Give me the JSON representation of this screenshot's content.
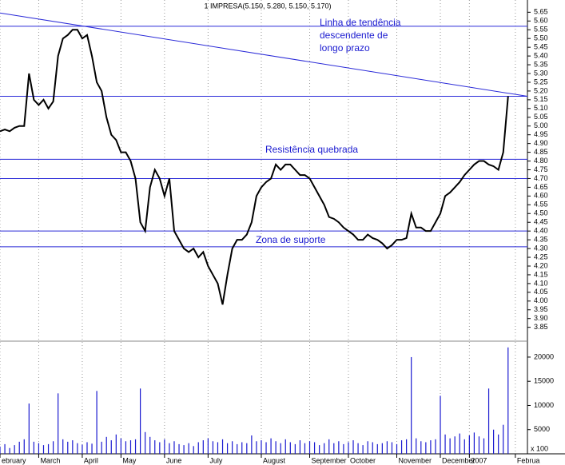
{
  "chart_data": [
    {
      "type": "line",
      "title": "1 IMPRESA(5.150, 5.280, 5.150, 5.170)",
      "color": "#000000",
      "line_color": "#2a2ad8",
      "annotations": [
        "Linha de tendência",
        "descendente de",
        "longo prazo",
        "Resistência quebrada",
        "Zona de suporte"
      ],
      "xlim": [
        0,
        109
      ],
      "xticks": [
        {
          "value": 0,
          "label": "ebruary"
        },
        {
          "value": 8,
          "label": "March"
        },
        {
          "value": 17,
          "label": "April"
        },
        {
          "value": 25,
          "label": "May"
        },
        {
          "value": 34,
          "label": "June"
        },
        {
          "value": 43,
          "label": "July"
        },
        {
          "value": 54,
          "label": "August"
        },
        {
          "value": 64,
          "label": "September"
        },
        {
          "value": 72,
          "label": "October"
        },
        {
          "value": 82,
          "label": "November"
        },
        {
          "value": 91,
          "label": "December"
        },
        {
          "value": 97,
          "label": "2007"
        },
        {
          "value": 106.5,
          "label": "Februa"
        }
      ],
      "ylim": [
        3.78,
        5.72
      ],
      "yticks": [
        {
          "value": 5.65,
          "label": "5.65"
        },
        {
          "value": 5.6,
          "label": "5.60"
        },
        {
          "value": 5.55,
          "label": "5.55"
        },
        {
          "value": 5.5,
          "label": "5.50"
        },
        {
          "value": 5.45,
          "label": "5.45"
        },
        {
          "value": 5.4,
          "label": "5.40"
        },
        {
          "value": 5.35,
          "label": "5.35"
        },
        {
          "value": 5.3,
          "label": "5.30"
        },
        {
          "value": 5.25,
          "label": "5.25"
        },
        {
          "value": 5.2,
          "label": "5.20"
        },
        {
          "value": 5.15,
          "label": "5.15"
        },
        {
          "value": 5.1,
          "label": "5.10"
        },
        {
          "value": 5.05,
          "label": "5.05"
        },
        {
          "value": 5.0,
          "label": "5.00"
        },
        {
          "value": 4.95,
          "label": "4.95"
        },
        {
          "value": 4.9,
          "label": "4.90"
        },
        {
          "value": 4.85,
          "label": "4.85"
        },
        {
          "value": 4.8,
          "label": "4.80"
        },
        {
          "value": 4.75,
          "label": "4.75"
        },
        {
          "value": 4.7,
          "label": "4.70"
        },
        {
          "value": 4.65,
          "label": "4.65"
        },
        {
          "value": 4.6,
          "label": "4.60"
        },
        {
          "value": 4.55,
          "label": "4.55"
        },
        {
          "value": 4.5,
          "label": "4.50"
        },
        {
          "value": 4.45,
          "label": "4.45"
        },
        {
          "value": 4.4,
          "label": "4.40"
        },
        {
          "value": 4.35,
          "label": "4.35"
        },
        {
          "value": 4.3,
          "label": "4.30"
        },
        {
          "value": 4.25,
          "label": "4.25"
        },
        {
          "value": 4.2,
          "label": "4.20"
        },
        {
          "value": 4.15,
          "label": "4.15"
        },
        {
          "value": 4.1,
          "label": "4.10"
        },
        {
          "value": 4.05,
          "label": "4.05"
        },
        {
          "value": 4.0,
          "label": "4.00"
        },
        {
          "value": 3.95,
          "label": "3.95"
        },
        {
          "value": 3.9,
          "label": "3.90"
        },
        {
          "value": 3.85,
          "label": "3.85"
        }
      ],
      "hlines": [
        5.57,
        5.17,
        4.81,
        4.7,
        4.4,
        4.31
      ],
      "trendline": {
        "x": [
          0,
          109
        ],
        "y": [
          5.646,
          5.17
        ]
      },
      "values": [
        4.97,
        4.98,
        4.97,
        4.99,
        5.0,
        5.0,
        5.3,
        5.15,
        5.12,
        5.15,
        5.1,
        5.14,
        5.4,
        5.5,
        5.52,
        5.55,
        5.55,
        5.5,
        5.52,
        5.4,
        5.25,
        5.2,
        5.05,
        4.95,
        4.92,
        4.85,
        4.85,
        4.8,
        4.7,
        4.45,
        4.4,
        4.65,
        4.75,
        4.7,
        4.6,
        4.7,
        4.4,
        4.35,
        4.3,
        4.28,
        4.3,
        4.25,
        4.28,
        4.2,
        4.15,
        4.1,
        3.98,
        4.15,
        4.3,
        4.35,
        4.35,
        4.38,
        4.45,
        4.6,
        4.65,
        4.68,
        4.7,
        4.78,
        4.75,
        4.78,
        4.78,
        4.75,
        4.72,
        4.72,
        4.7,
        4.65,
        4.6,
        4.55,
        4.48,
        4.47,
        4.45,
        4.42,
        4.4,
        4.38,
        4.35,
        4.35,
        4.38,
        4.36,
        4.35,
        4.33,
        4.3,
        4.32,
        4.35,
        4.35,
        4.36,
        4.5,
        4.42,
        4.42,
        4.4,
        4.4,
        4.45,
        4.5,
        4.6,
        4.62,
        4.65,
        4.68,
        4.72,
        4.75,
        4.78,
        4.8,
        4.8,
        4.78,
        4.77,
        4.75,
        4.85,
        5.17
      ]
    },
    {
      "type": "bar",
      "color": "#1a1ad0",
      "unit_label": "x 100",
      "xlim": [
        0,
        109
      ],
      "ylim": [
        0,
        22800
      ],
      "yticks": [
        5000,
        10000,
        15000,
        20000
      ],
      "values": [
        1500,
        2000,
        1200,
        1800,
        2500,
        3000,
        10400,
        2500,
        2200,
        1800,
        2000,
        2600,
        12500,
        3000,
        2500,
        2800,
        2200,
        1900,
        2400,
        2100,
        13000,
        2500,
        3500,
        2800,
        4000,
        3200,
        2600,
        2800,
        3000,
        13500,
        4500,
        3500,
        2800,
        2400,
        3000,
        2200,
        2600,
        2000,
        1800,
        2200,
        1600,
        2400,
        2800,
        3200,
        2600,
        2400,
        3000,
        2200,
        2600,
        2000,
        2400,
        2200,
        3800,
        2600,
        2800,
        2400,
        3200,
        2600,
        2200,
        3000,
        2400,
        2000,
        2800,
        2200,
        2600,
        2400,
        1800,
        2200,
        3000,
        2200,
        2600,
        2000,
        2400,
        2800,
        2200,
        1800,
        2600,
        2400,
        2000,
        2200,
        2600,
        2400,
        2000,
        2800,
        3000,
        20000,
        3200,
        2600,
        2400,
        2800,
        3000,
        12000,
        4000,
        3200,
        3600,
        4200,
        3000,
        3800,
        4400,
        3600,
        3200,
        13500,
        5000,
        4000,
        6000,
        22000
      ]
    }
  ]
}
